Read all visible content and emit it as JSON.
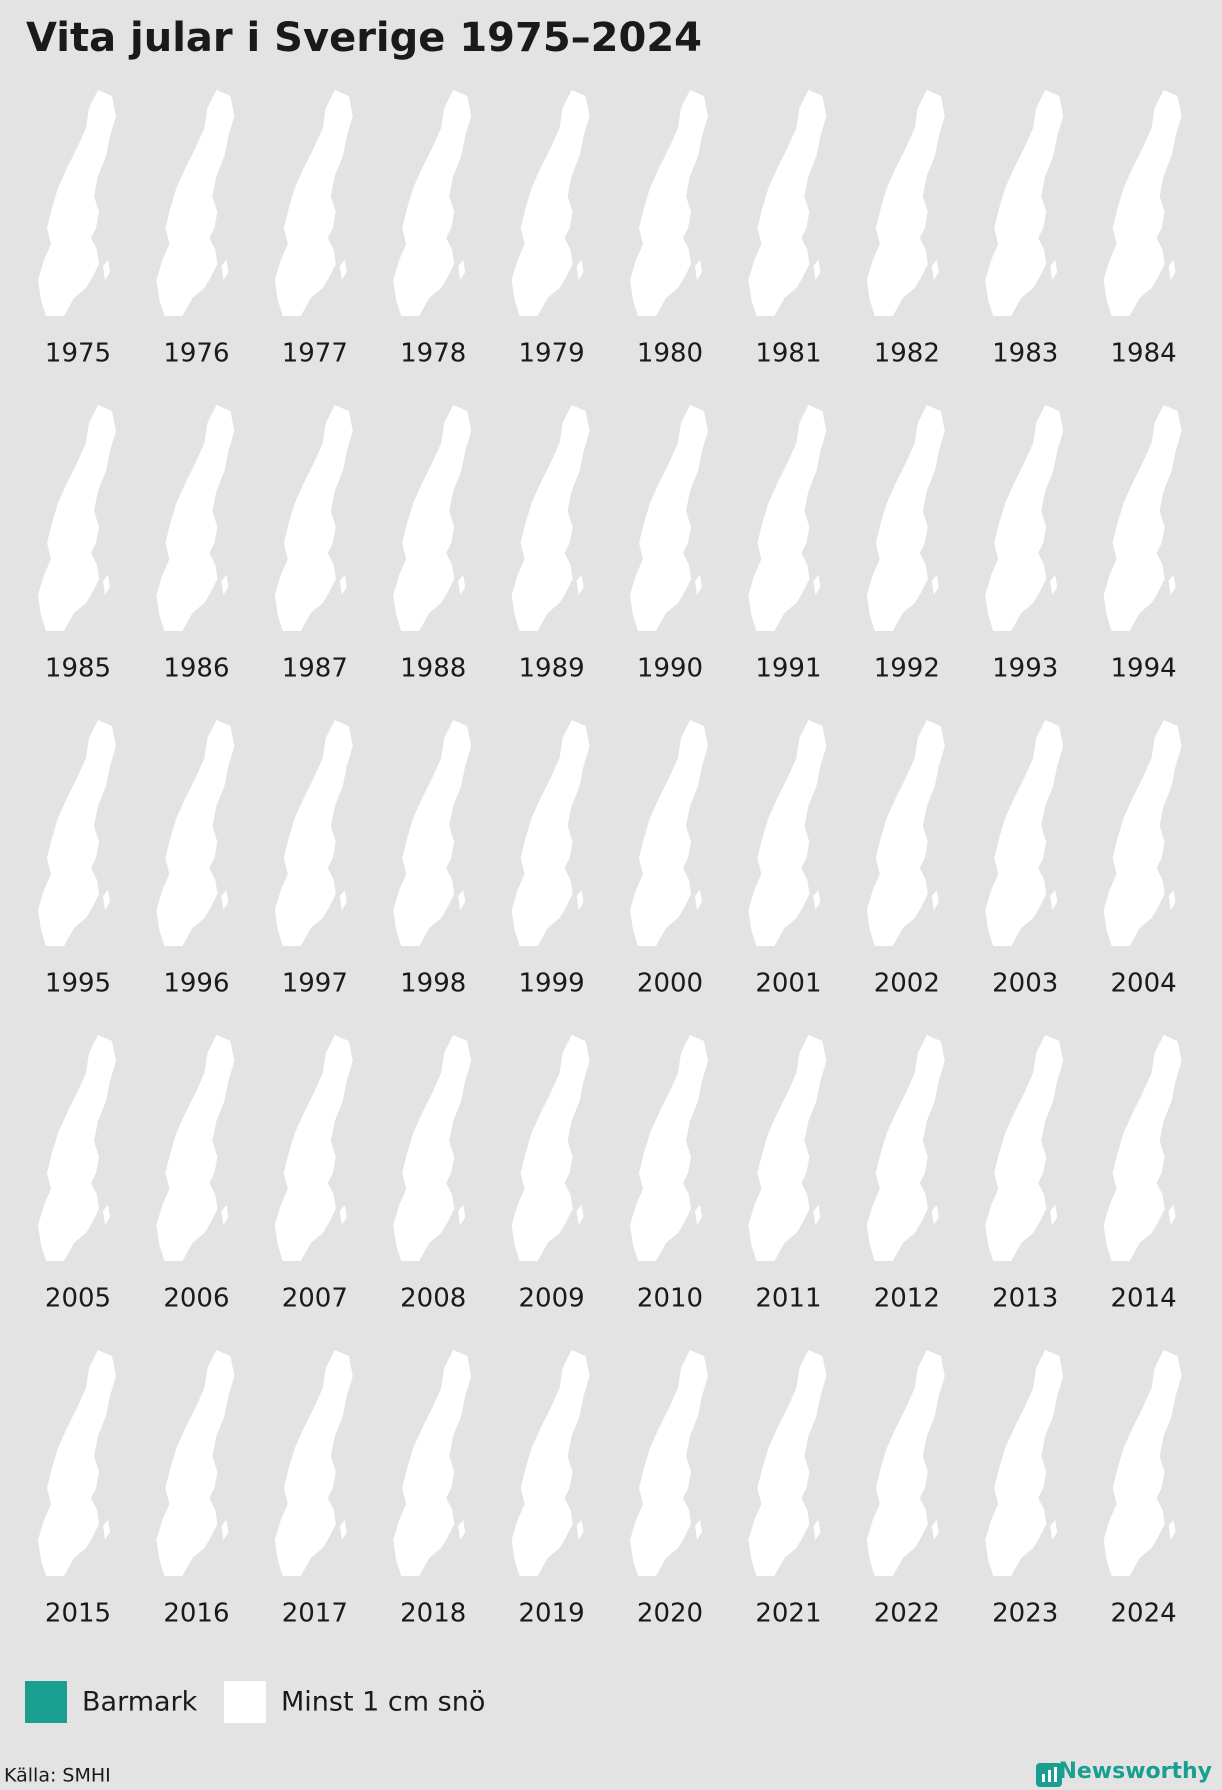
{
  "title": "Vita jular i Sverige 1975–2024",
  "years": [
    1975,
    1976,
    1977,
    1978,
    1979,
    1980,
    1981,
    1982,
    1983,
    1984,
    1985,
    1986,
    1987,
    1988,
    1989,
    1990,
    1991,
    1992,
    1993,
    1994,
    1995,
    1996,
    1997,
    1998,
    1999,
    2000,
    2001,
    2002,
    2003,
    2004,
    2005,
    2006,
    2007,
    2008,
    2009,
    2010,
    2011,
    2012,
    2013,
    2014,
    2015,
    2016,
    2017,
    2018,
    2019,
    2020,
    2021,
    2022,
    2023,
    2024
  ],
  "legend": [
    {
      "label": "Barmark",
      "color": "#1a9e8f"
    },
    {
      "label": "Minst 1 cm snö",
      "color": "#ffffff"
    }
  ],
  "source": "Källa: SMHI",
  "brand": "Newsworthy"
}
